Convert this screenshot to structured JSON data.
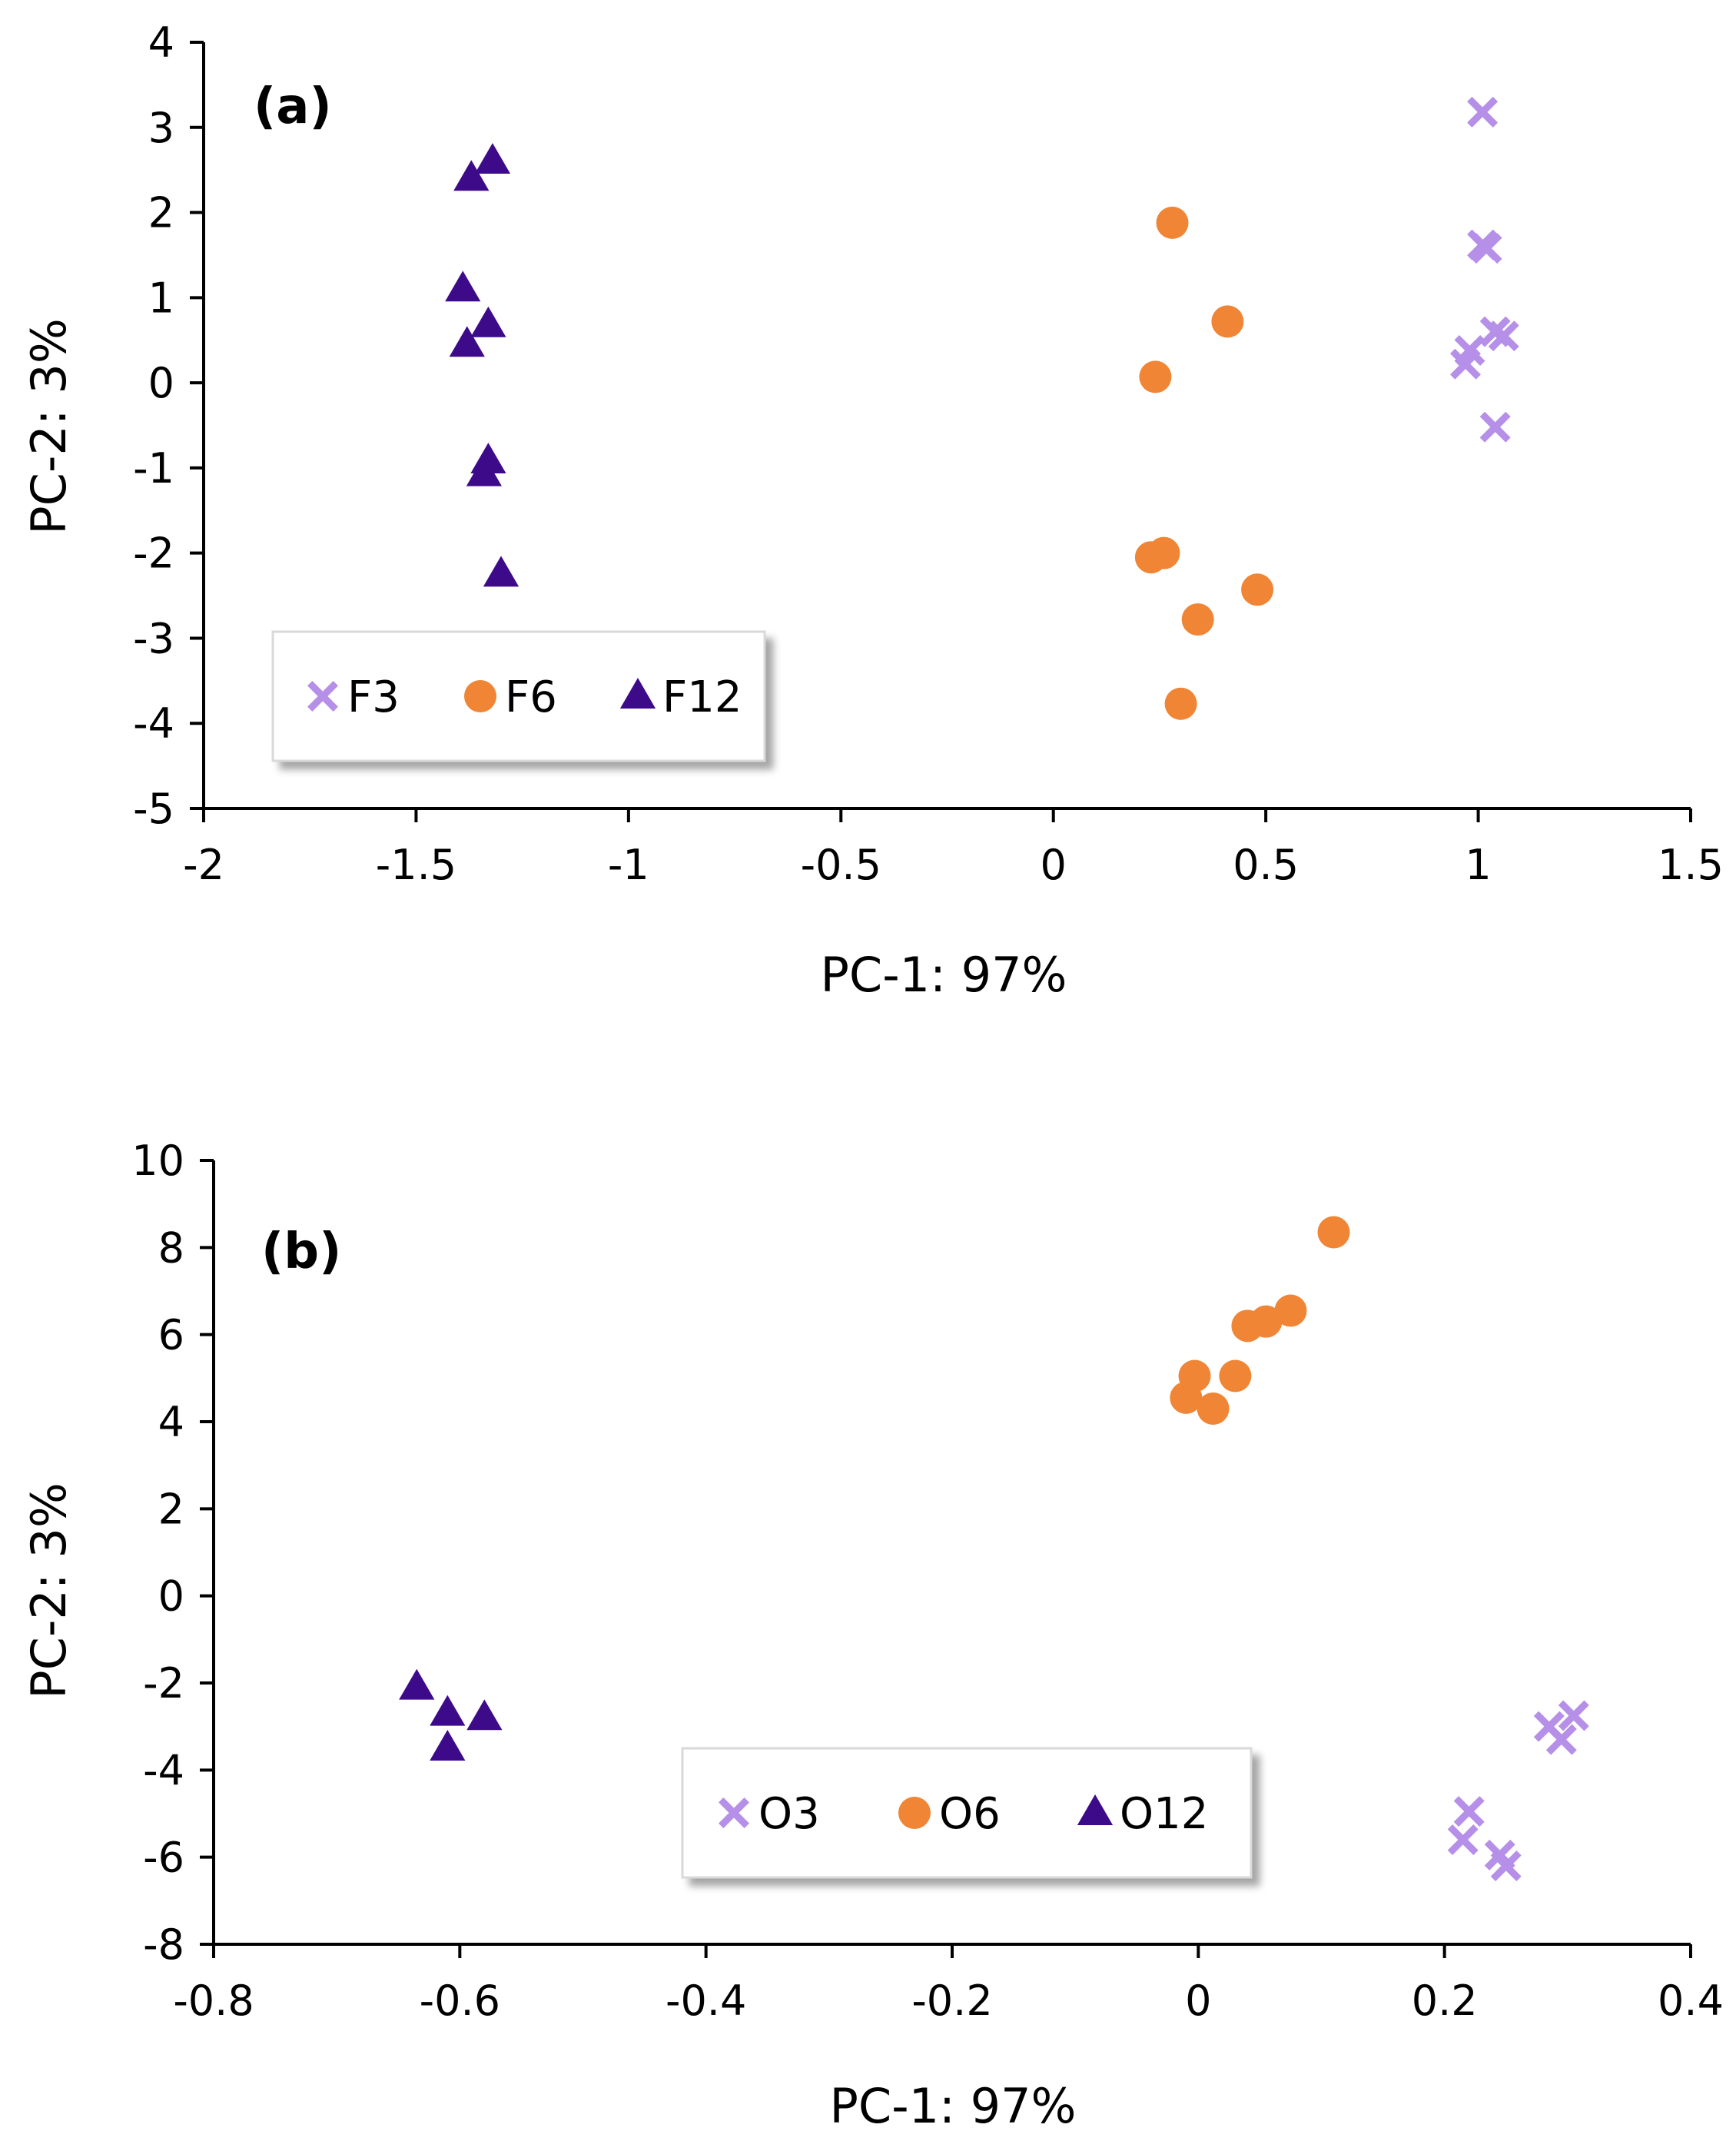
{
  "chart_data": [
    {
      "type": "scatter",
      "panel_label": "(a)",
      "xlabel": "PC-1: 97%",
      "ylabel": "PC-2: 3%",
      "xlim": [
        -2,
        1.5
      ],
      "ylim": [
        -5,
        4
      ],
      "xticks": [
        -2,
        -1.5,
        -1,
        -0.5,
        0,
        0.5,
        1,
        1.5
      ],
      "yticks": [
        -5,
        -4,
        -3,
        -2,
        -1,
        0,
        1,
        2,
        3,
        4
      ],
      "xtick_labels": [
        "-2",
        "-1.5",
        "-1",
        "-0.5",
        "0",
        "0.5",
        "1",
        "1.5"
      ],
      "ytick_labels": [
        "-5",
        "-4",
        "-3",
        "-2",
        "-1",
        "0",
        "1",
        "2",
        "3",
        "4"
      ],
      "grid": false,
      "legend_position": "bottom-left",
      "series": [
        {
          "name": "F3",
          "marker": "x",
          "color": "#b58fe8",
          "points": [
            [
              1.01,
              3.18
            ],
            [
              1.01,
              1.62
            ],
            [
              1.02,
              1.58
            ],
            [
              1.04,
              0.6
            ],
            [
              1.06,
              0.55
            ],
            [
              0.98,
              0.38
            ],
            [
              0.97,
              0.22
            ],
            [
              1.04,
              -0.52
            ]
          ]
        },
        {
          "name": "F6",
          "marker": "circle",
          "color": "#ef8535",
          "points": [
            [
              0.28,
              1.88
            ],
            [
              0.41,
              0.72
            ],
            [
              0.24,
              0.07
            ],
            [
              0.26,
              -2.0
            ],
            [
              0.23,
              -2.05
            ],
            [
              0.48,
              -2.43
            ],
            [
              0.34,
              -2.78
            ],
            [
              0.3,
              -3.77
            ]
          ]
        },
        {
          "name": "F12",
          "marker": "triangle",
          "color": "#3d0a8a",
          "points": [
            [
              -1.32,
              2.6
            ],
            [
              -1.37,
              2.4
            ],
            [
              -1.39,
              1.1
            ],
            [
              -1.33,
              0.68
            ],
            [
              -1.38,
              0.45
            ],
            [
              -1.33,
              -0.92
            ],
            [
              -1.34,
              -1.07
            ],
            [
              -1.3,
              -2.25
            ]
          ]
        }
      ]
    },
    {
      "type": "scatter",
      "panel_label": "(b)",
      "xlabel": "PC-1: 97%",
      "ylabel": "PC-2: 3%",
      "xlim": [
        -0.8,
        0.4
      ],
      "ylim": [
        -8,
        10
      ],
      "xticks": [
        -0.8,
        -0.6,
        -0.4,
        -0.2,
        0,
        0.2,
        0.4
      ],
      "yticks": [
        -8,
        -6,
        -4,
        -2,
        0,
        2,
        4,
        6,
        8,
        10
      ],
      "xtick_labels": [
        "-0.8",
        "-0.6",
        "-0.4",
        "-0.2",
        "0",
        "0.2",
        "0.4"
      ],
      "ytick_labels": [
        "-8",
        "-6",
        "-4",
        "-2",
        "0",
        "2",
        "4",
        "6",
        "8",
        "10"
      ],
      "grid": false,
      "legend_position": "bottom-center",
      "series": [
        {
          "name": "O3",
          "marker": "x",
          "color": "#b58fe8",
          "points": [
            [
              0.305,
              -2.75
            ],
            [
              0.285,
              -3.0
            ],
            [
              0.295,
              -3.3
            ],
            [
              0.22,
              -4.95
            ],
            [
              0.215,
              -5.6
            ],
            [
              0.245,
              -5.95
            ],
            [
              0.25,
              -6.2
            ]
          ]
        },
        {
          "name": "O6",
          "marker": "circle",
          "color": "#ef8535",
          "points": [
            [
              0.11,
              8.35
            ],
            [
              0.075,
              6.55
            ],
            [
              0.055,
              6.3
            ],
            [
              0.04,
              6.2
            ],
            [
              0.03,
              5.05
            ],
            [
              -0.003,
              5.05
            ],
            [
              -0.01,
              4.55
            ],
            [
              0.012,
              4.3
            ]
          ]
        },
        {
          "name": "O12",
          "marker": "triangle",
          "color": "#3d0a8a",
          "points": [
            [
              -0.635,
              -2.1
            ],
            [
              -0.61,
              -2.7
            ],
            [
              -0.58,
              -2.8
            ],
            [
              -0.61,
              -3.5
            ]
          ]
        }
      ]
    }
  ]
}
